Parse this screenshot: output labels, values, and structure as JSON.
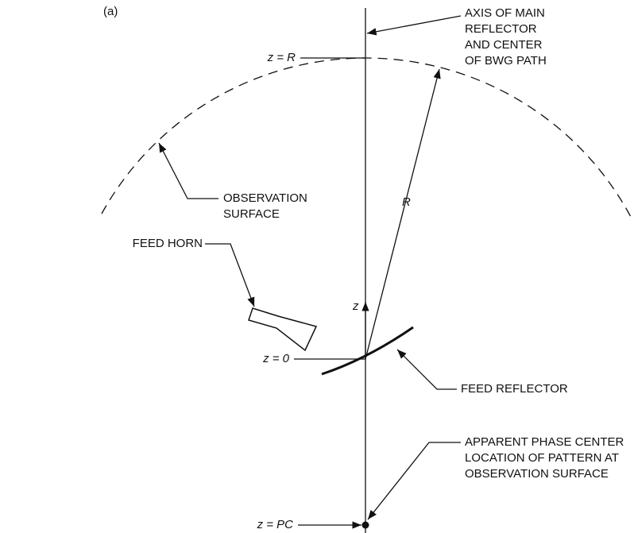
{
  "panel_label": "(a)",
  "axis_label": [
    "AXIS OF MAIN",
    "REFLECTOR",
    "AND CENTER",
    "OF BWG PATH"
  ],
  "z_r_label": "z = R",
  "radius_label": "R",
  "observation_label": [
    "OBSERVATION",
    "SURFACE"
  ],
  "feed_horn_label": "FEED HORN",
  "z_axis_label": "z",
  "z_zero_label": "z = 0",
  "feed_reflector_label": "FEED REFLECTOR",
  "phase_center_label": [
    "APPARENT PHASE CENTER",
    "LOCATION OF PATTERN AT",
    "OBSERVATION SURFACE"
  ],
  "z_pc_label": "z = PC"
}
